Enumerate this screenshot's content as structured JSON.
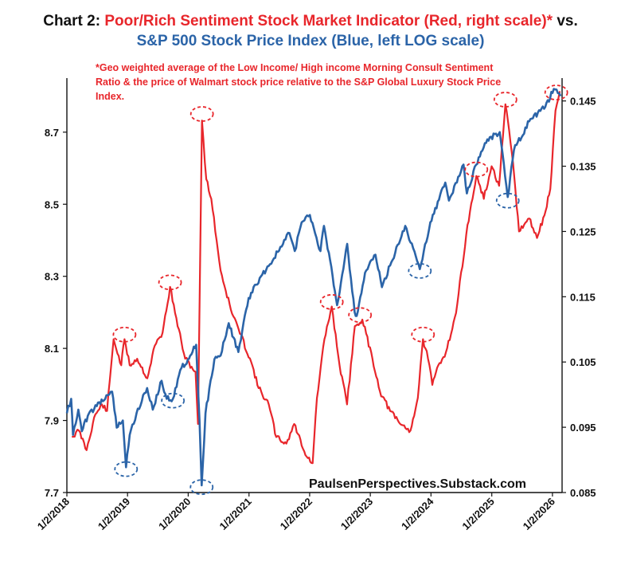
{
  "title": {
    "prefix": "Chart 2: ",
    "red_part": "Poor/Rich Sentiment Stock Market Indicator (Red, right scale)*",
    "middle": " vs. ",
    "blue_part": "S&P 500 Stock Price Index (Blue, left LOG scale)"
  },
  "footnote": "*Geo weighted average of the Low Income/ High income Morning Consult Sentiment Ratio & the price of Walmart stock price relative to the S&P Global Luxury Stock Price Index.",
  "credit": "PaulsenPerspectives.Substack.com",
  "colors": {
    "red": "#e8262b",
    "blue": "#2b64a8",
    "axis": "#111111"
  },
  "chart_data": {
    "type": "line",
    "x_ticks": [
      "1/2/2018",
      "1/2/2019",
      "1/2/2020",
      "1/2/2021",
      "1/2/2022",
      "1/2/2023",
      "1/2/2024",
      "1/2/2025",
      "1/2/2026"
    ],
    "y_left_ticks": [
      "7.7",
      "7.9",
      "8.1",
      "8.3",
      "8.5",
      "8.7"
    ],
    "y_left_range": [
      7.7,
      8.85
    ],
    "y_right_ticks": [
      "0.085",
      "0.095",
      "0.105",
      "0.115",
      "0.125",
      "0.135",
      "0.145"
    ],
    "y_right_range": [
      0.085,
      0.1485
    ],
    "x_range": [
      "2018-01-02",
      "2026-03-01"
    ],
    "grid": false,
    "legend": "none",
    "series": [
      {
        "axis": "left",
        "color": "#2b64a8",
        "points": [
          [
            "2018-01-02",
            7.92
          ],
          [
            "2018-01-28",
            7.96
          ],
          [
            "2018-02-08",
            7.86
          ],
          [
            "2018-03-12",
            7.93
          ],
          [
            "2018-04-02",
            7.87
          ],
          [
            "2018-05-15",
            7.92
          ],
          [
            "2018-07-01",
            7.94
          ],
          [
            "2018-08-28",
            7.97
          ],
          [
            "2018-10-01",
            7.98
          ],
          [
            "2018-10-29",
            7.88
          ],
          [
            "2018-12-05",
            7.9
          ],
          [
            "2018-12-24",
            7.77
          ],
          [
            "2019-01-15",
            7.86
          ],
          [
            "2019-02-25",
            7.92
          ],
          [
            "2019-04-30",
            7.99
          ],
          [
            "2019-06-03",
            7.93
          ],
          [
            "2019-07-26",
            8.01
          ],
          [
            "2019-08-26",
            7.96
          ],
          [
            "2019-10-02",
            7.96
          ],
          [
            "2019-11-15",
            8.04
          ],
          [
            "2019-12-31",
            8.07
          ],
          [
            "2020-02-19",
            8.11
          ],
          [
            "2020-03-10",
            7.9
          ],
          [
            "2020-03-23",
            7.72
          ],
          [
            "2020-04-15",
            7.92
          ],
          [
            "2020-06-08",
            8.07
          ],
          [
            "2020-07-15",
            8.08
          ],
          [
            "2020-09-02",
            8.17
          ],
          [
            "2020-10-30",
            8.09
          ],
          [
            "2020-12-31",
            8.24
          ],
          [
            "2021-03-15",
            8.3
          ],
          [
            "2021-06-01",
            8.35
          ],
          [
            "2021-09-02",
            8.42
          ],
          [
            "2021-10-04",
            8.37
          ],
          [
            "2021-11-15",
            8.45
          ],
          [
            "2022-01-03",
            8.47
          ],
          [
            "2022-03-08",
            8.37
          ],
          [
            "2022-03-29",
            8.44
          ],
          [
            "2022-05-20",
            8.3
          ],
          [
            "2022-06-16",
            8.22
          ],
          [
            "2022-08-16",
            8.39
          ],
          [
            "2022-09-30",
            8.2
          ],
          [
            "2022-10-12",
            8.19
          ],
          [
            "2022-12-01",
            8.31
          ],
          [
            "2023-02-02",
            8.36
          ],
          [
            "2023-03-13",
            8.27
          ],
          [
            "2023-05-01",
            8.33
          ],
          [
            "2023-07-31",
            8.44
          ],
          [
            "2023-10-27",
            8.32
          ],
          [
            "2023-12-29",
            8.45
          ],
          [
            "2024-03-28",
            8.56
          ],
          [
            "2024-04-19",
            8.51
          ],
          [
            "2024-07-16",
            8.61
          ],
          [
            "2024-08-05",
            8.53
          ],
          [
            "2024-10-15",
            8.63
          ],
          [
            "2024-12-06",
            8.68
          ],
          [
            "2025-02-19",
            8.7
          ],
          [
            "2025-04-08",
            8.52
          ],
          [
            "2025-05-15",
            8.65
          ],
          [
            "2025-08-15",
            8.73
          ],
          [
            "2025-11-20",
            8.77
          ],
          [
            "2026-01-10",
            8.82
          ],
          [
            "2026-02-20",
            8.8
          ]
        ]
      },
      {
        "axis": "right",
        "color": "#e8262b",
        "points": [
          [
            "2018-02-01",
            0.0935
          ],
          [
            "2018-03-15",
            0.0945
          ],
          [
            "2018-05-01",
            0.0915
          ],
          [
            "2018-06-15",
            0.0965
          ],
          [
            "2018-08-01",
            0.0985
          ],
          [
            "2018-09-01",
            0.0975
          ],
          [
            "2018-10-10",
            0.1085
          ],
          [
            "2018-11-25",
            0.1045
          ],
          [
            "2018-12-15",
            0.1085
          ],
          [
            "2019-01-15",
            0.1045
          ],
          [
            "2019-03-01",
            0.1055
          ],
          [
            "2019-05-01",
            0.1025
          ],
          [
            "2019-06-15",
            0.1075
          ],
          [
            "2019-08-01",
            0.1095
          ],
          [
            "2019-09-15",
            0.1165
          ],
          [
            "2019-10-15",
            0.1125
          ],
          [
            "2019-12-15",
            0.1055
          ],
          [
            "2020-02-15",
            0.1035
          ],
          [
            "2020-03-01",
            0.0955
          ],
          [
            "2020-03-25",
            0.142
          ],
          [
            "2020-04-20",
            0.133
          ],
          [
            "2020-05-20",
            0.13
          ],
          [
            "2020-07-15",
            0.119
          ],
          [
            "2020-09-15",
            0.113
          ],
          [
            "2020-11-01",
            0.11
          ],
          [
            "2021-01-15",
            0.105
          ],
          [
            "2021-03-01",
            0.101
          ],
          [
            "2021-05-01",
            0.0985
          ],
          [
            "2021-06-15",
            0.0935
          ],
          [
            "2021-08-15",
            0.0925
          ],
          [
            "2021-10-01",
            0.0955
          ],
          [
            "2021-12-15",
            0.0905
          ],
          [
            "2022-01-20",
            0.0895
          ],
          [
            "2022-02-15",
            0.0995
          ],
          [
            "2022-04-01",
            0.1085
          ],
          [
            "2022-05-15",
            0.1135
          ],
          [
            "2022-07-01",
            0.1045
          ],
          [
            "2022-08-15",
            0.0985
          ],
          [
            "2022-10-01",
            0.1105
          ],
          [
            "2022-11-15",
            0.1115
          ],
          [
            "2023-01-15",
            0.1055
          ],
          [
            "2023-03-01",
            0.1005
          ],
          [
            "2023-05-01",
            0.0975
          ],
          [
            "2023-07-01",
            0.0955
          ],
          [
            "2023-09-01",
            0.0945
          ],
          [
            "2023-10-15",
            0.0995
          ],
          [
            "2023-11-15",
            0.1085
          ],
          [
            "2023-12-15",
            0.1055
          ],
          [
            "2024-01-10",
            0.1015
          ],
          [
            "2024-02-15",
            0.1045
          ],
          [
            "2024-04-01",
            0.1065
          ],
          [
            "2024-06-01",
            0.1125
          ],
          [
            "2024-08-01",
            0.1245
          ],
          [
            "2024-10-01",
            0.1335
          ],
          [
            "2024-11-15",
            0.13
          ],
          [
            "2025-01-01",
            0.135
          ],
          [
            "2025-02-15",
            0.132
          ],
          [
            "2025-03-25",
            0.1445
          ],
          [
            "2025-05-10",
            0.1355
          ],
          [
            "2025-06-15",
            0.125
          ],
          [
            "2025-08-15",
            0.127
          ],
          [
            "2025-10-01",
            0.124
          ],
          [
            "2025-11-15",
            0.1275
          ],
          [
            "2025-12-20",
            0.1315
          ],
          [
            "2026-01-20",
            0.1435
          ],
          [
            "2026-02-15",
            0.1465
          ]
        ]
      }
    ],
    "highlight_markers": [
      {
        "color": "red",
        "x": "2018-12-15",
        "axis": "right",
        "y": 0.1092
      },
      {
        "color": "red",
        "x": "2019-09-15",
        "axis": "right",
        "y": 0.1172
      },
      {
        "color": "red",
        "x": "2020-03-25",
        "axis": "right",
        "y": 0.143
      },
      {
        "color": "red",
        "x": "2022-05-15",
        "axis": "right",
        "y": 0.1142
      },
      {
        "color": "red",
        "x": "2022-11-01",
        "axis": "right",
        "y": 0.1122
      },
      {
        "color": "red",
        "x": "2023-11-15",
        "axis": "right",
        "y": 0.1092
      },
      {
        "color": "red",
        "x": "2024-10-01",
        "axis": "right",
        "y": 0.1345
      },
      {
        "color": "red",
        "x": "2025-03-25",
        "axis": "right",
        "y": 0.1452
      },
      {
        "color": "red",
        "x": "2026-01-25",
        "axis": "left",
        "y": 8.81
      },
      {
        "color": "blue",
        "x": "2018-12-24",
        "axis": "left",
        "y": 7.765
      },
      {
        "color": "blue",
        "x": "2019-10-02",
        "axis": "left",
        "y": 7.955
      },
      {
        "color": "blue",
        "x": "2020-03-23",
        "axis": "left",
        "y": 7.715
      },
      {
        "color": "blue",
        "x": "2023-10-27",
        "axis": "left",
        "y": 8.315
      },
      {
        "color": "blue",
        "x": "2025-04-08",
        "axis": "left",
        "y": 8.51
      }
    ]
  }
}
